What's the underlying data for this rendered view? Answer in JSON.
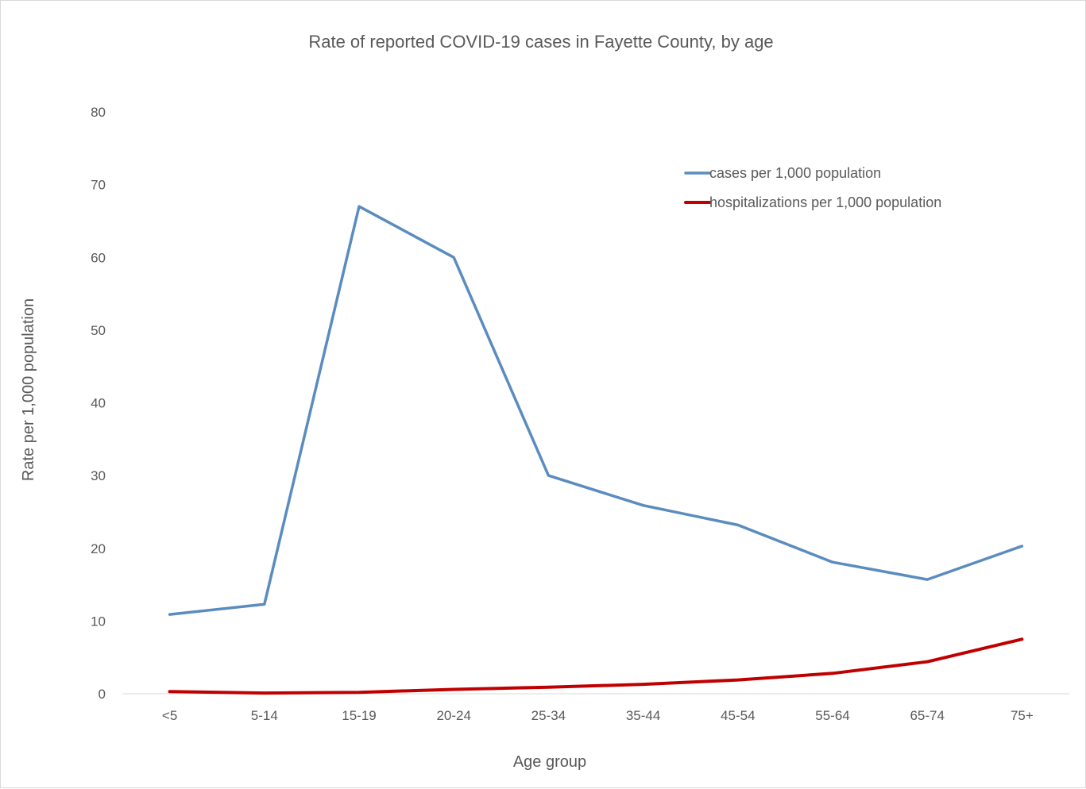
{
  "chart_data": {
    "type": "line",
    "title": "Rate of reported COVID-19 cases in Fayette County, by age",
    "xlabel": "Age group",
    "ylabel": "Rate per 1,000 population",
    "categories": [
      "<5",
      "5-14",
      "15-19",
      "20-24",
      "25-34",
      "35-44",
      "45-54",
      "55-64",
      "65-74",
      "75+"
    ],
    "ylim": [
      0,
      80
    ],
    "yticks": [
      "0",
      "10",
      "20",
      "30",
      "40",
      "50",
      "60",
      "70",
      "80"
    ],
    "grid": false,
    "legend_position": "top-right",
    "series": [
      {
        "name": "cases per 1,000 population",
        "color": "#5b8cbf",
        "values": [
          10.9,
          12.3,
          67.0,
          60.0,
          30.0,
          25.9,
          23.2,
          18.1,
          15.7,
          20.3
        ]
      },
      {
        "name": "hospitalizations per 1,000 population",
        "color": "#c00000",
        "values": [
          0.3,
          0.1,
          0.2,
          0.6,
          0.9,
          1.3,
          1.9,
          2.8,
          4.4,
          7.5
        ]
      }
    ]
  }
}
